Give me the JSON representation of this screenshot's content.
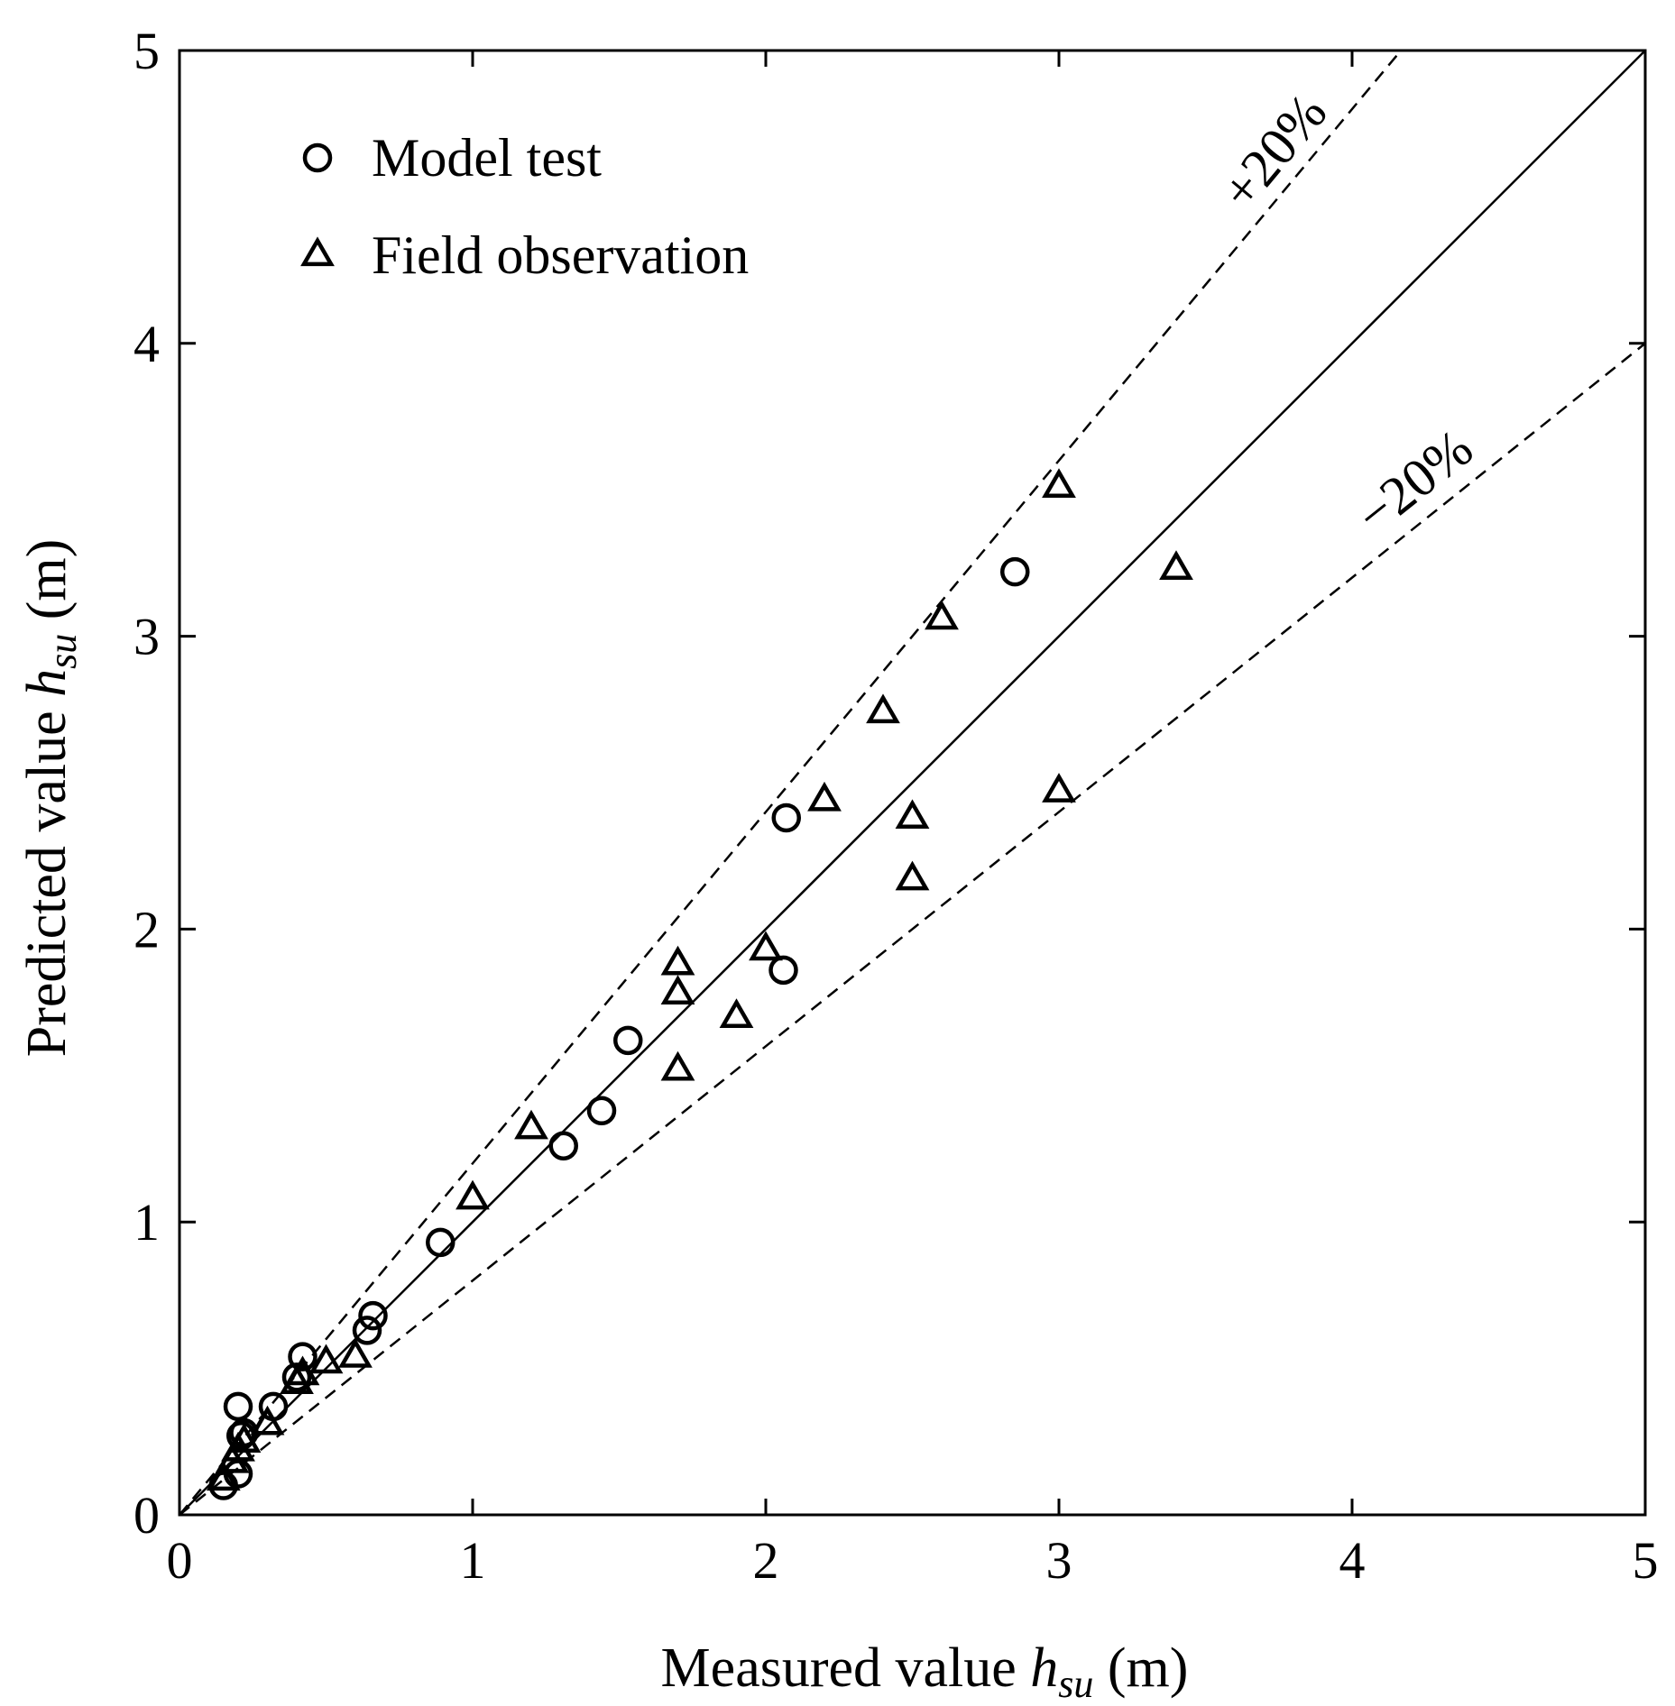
{
  "chart_data": {
    "type": "scatter",
    "title": "",
    "xlabel": {
      "prefix": "Measured value ",
      "var": "h",
      "sub": "su",
      "suffix": " (m)"
    },
    "ylabel": {
      "prefix": "Predicted value ",
      "var": "h",
      "sub": "su",
      "suffix": " (m)"
    },
    "xlim": [
      0,
      5
    ],
    "ylim": [
      0,
      5
    ],
    "xticks": [
      0,
      1,
      2,
      3,
      4,
      5
    ],
    "yticks": [
      0,
      1,
      2,
      3,
      4,
      5
    ],
    "xtick_labels": [
      "0",
      "1",
      "2",
      "3",
      "4",
      "5"
    ],
    "ytick_labels": [
      "0",
      "1",
      "2",
      "3",
      "4",
      "5"
    ],
    "grid": false,
    "legend_position": "top-left",
    "reference_lines": [
      {
        "label": "",
        "slope": 1.0,
        "style": "solid"
      },
      {
        "label": "+20%",
        "slope": 1.2,
        "style": "dashed"
      },
      {
        "label": "−20%",
        "slope": 0.8,
        "style": "dashed"
      }
    ],
    "series": [
      {
        "name": "Model test",
        "marker": "circle",
        "x": [
          0.15,
          0.2,
          0.21,
          0.22,
          0.2,
          0.32,
          0.4,
          0.42,
          0.64,
          0.66,
          0.89,
          1.31,
          1.44,
          1.53,
          2.06,
          2.07,
          2.85
        ],
        "y": [
          0.1,
          0.14,
          0.27,
          0.28,
          0.37,
          0.37,
          0.47,
          0.54,
          0.63,
          0.68,
          0.93,
          1.26,
          1.38,
          1.62,
          1.86,
          2.38,
          3.22
        ]
      },
      {
        "name": "Field observation",
        "marker": "triangle",
        "x": [
          0.15,
          0.18,
          0.2,
          0.22,
          0.3,
          0.4,
          0.42,
          0.5,
          0.6,
          1.0,
          1.2,
          1.7,
          1.7,
          1.7,
          1.9,
          2.0,
          2.2,
          2.4,
          2.5,
          2.5,
          2.6,
          3.0,
          3.0,
          3.4
        ],
        "y": [
          0.12,
          0.18,
          0.22,
          0.25,
          0.31,
          0.45,
          0.48,
          0.52,
          0.54,
          1.08,
          1.32,
          1.52,
          1.78,
          1.88,
          1.7,
          1.93,
          2.44,
          2.74,
          2.17,
          2.38,
          3.06,
          2.47,
          3.51,
          3.23
        ]
      }
    ]
  }
}
